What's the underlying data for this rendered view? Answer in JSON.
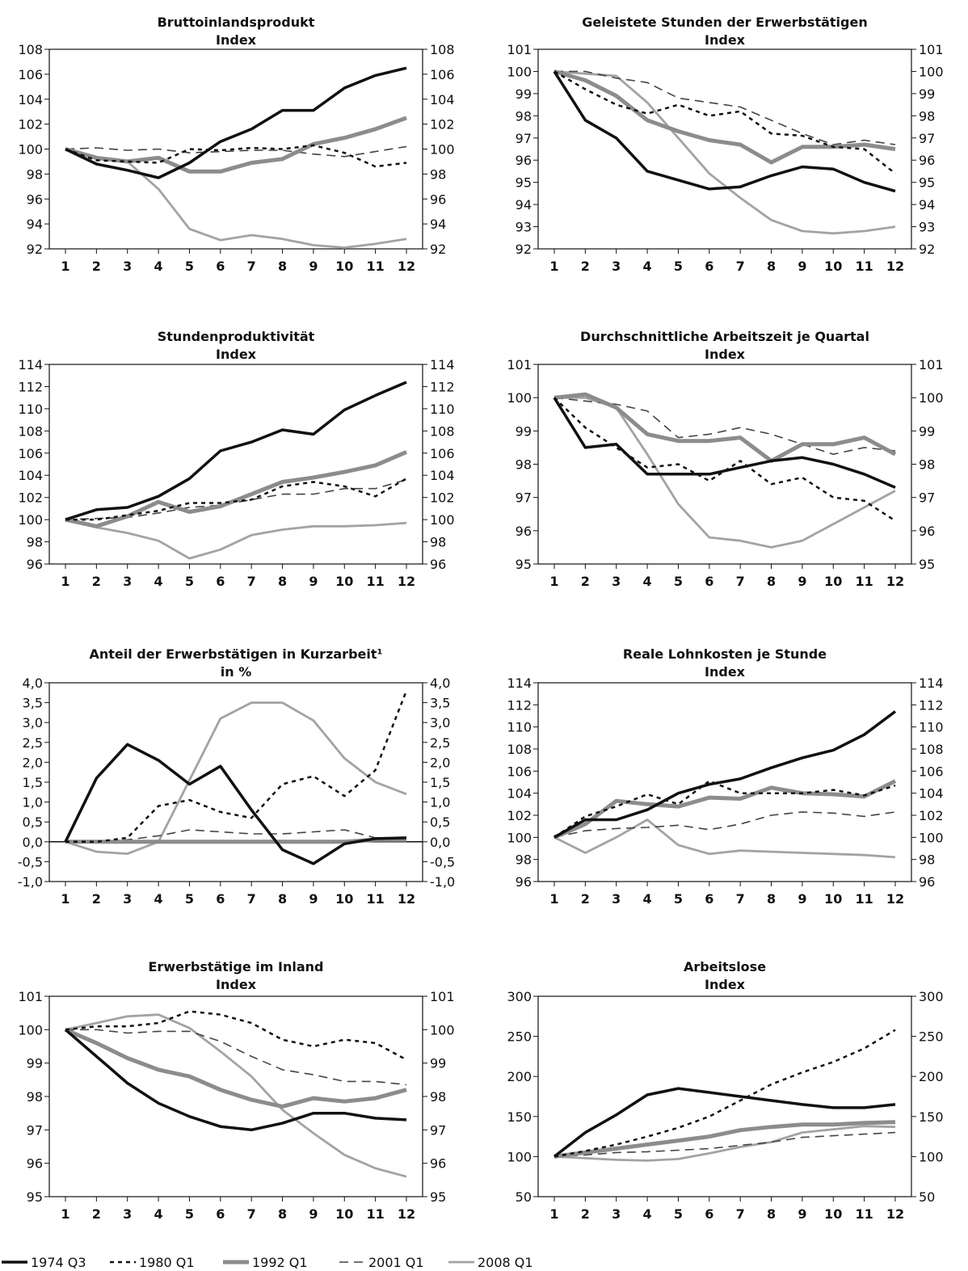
{
  "legend": {
    "items": [
      {
        "label": "1974 Q3",
        "color": "#111111",
        "width": 3.5,
        "dash": "",
        "key": "s1974"
      },
      {
        "label": "1980 Q1",
        "color": "#111111",
        "width": 2.5,
        "dash": "5,5",
        "key": "s1980"
      },
      {
        "label": "1992 Q1",
        "color": "#8c8c8c",
        "width": 5,
        "dash": "",
        "key": "s1992"
      },
      {
        "label": "2001 Q1",
        "color": "#444444",
        "width": 1.6,
        "dash": "11,7",
        "key": "s2001"
      },
      {
        "label": "2008 Q1",
        "color": "#a3a3a3",
        "width": 2.8,
        "dash": "",
        "key": "s2008"
      }
    ]
  },
  "chart_data": [
    {
      "type": "line",
      "title": "Bruttoinlandsprodukt",
      "subtitle": "Index",
      "x": [
        1,
        2,
        3,
        4,
        5,
        6,
        7,
        8,
        9,
        10,
        11,
        12
      ],
      "ylim": [
        92,
        108
      ],
      "yticks": [
        "92",
        "94",
        "96",
        "98",
        "100",
        "102",
        "104",
        "106",
        "108"
      ],
      "grid": false,
      "series": [
        {
          "name": "1974 Q3",
          "key": "s1974",
          "values": [
            100,
            98.8,
            98.3,
            97.7,
            98.9,
            100.6,
            101.6,
            103.1,
            103.1,
            104.9,
            105.9,
            106.5
          ]
        },
        {
          "name": "1980 Q1",
          "key": "s1980",
          "values": [
            100,
            99.1,
            99.0,
            98.9,
            100.0,
            99.9,
            100.1,
            100.0,
            100.3,
            99.7,
            98.6,
            98.9
          ]
        },
        {
          "name": "1992 Q1",
          "key": "s1992",
          "values": [
            100,
            99.3,
            99.0,
            99.3,
            98.2,
            98.2,
            98.9,
            99.2,
            100.4,
            100.9,
            101.6,
            102.5
          ]
        },
        {
          "name": "2001 Q1",
          "key": "s2001",
          "values": [
            100,
            100.1,
            99.9,
            100.0,
            99.7,
            99.8,
            99.9,
            99.9,
            99.6,
            99.4,
            99.8,
            100.2
          ]
        },
        {
          "name": "2008 Q1",
          "key": "s2008",
          "values": [
            100,
            99.2,
            99.0,
            96.8,
            93.6,
            92.7,
            93.1,
            92.8,
            92.3,
            92.1,
            92.4,
            92.8
          ]
        }
      ]
    },
    {
      "type": "line",
      "title": "Geleistete Stunden der Erwerbstätigen",
      "subtitle": "Index",
      "x": [
        1,
        2,
        3,
        4,
        5,
        6,
        7,
        8,
        9,
        10,
        11,
        12
      ],
      "ylim": [
        92,
        101
      ],
      "yticks": [
        "92",
        "93",
        "94",
        "95",
        "96",
        "97",
        "98",
        "99",
        "100",
        "101"
      ],
      "grid": false,
      "series": [
        {
          "name": "1974 Q3",
          "key": "s1974",
          "values": [
            100,
            97.8,
            97.0,
            95.5,
            95.1,
            94.7,
            94.8,
            95.3,
            95.7,
            95.6,
            95.0,
            94.6
          ]
        },
        {
          "name": "1980 Q1",
          "key": "s1980",
          "values": [
            100,
            99.2,
            98.5,
            98.1,
            98.5,
            98.0,
            98.2,
            97.2,
            97.1,
            96.6,
            96.5,
            95.4
          ]
        },
        {
          "name": "1992 Q1",
          "key": "s1992",
          "values": [
            100,
            99.6,
            98.9,
            97.8,
            97.3,
            96.9,
            96.7,
            95.9,
            96.6,
            96.6,
            96.7,
            96.5
          ]
        },
        {
          "name": "2001 Q1",
          "key": "s2001",
          "values": [
            100,
            100.0,
            99.7,
            99.5,
            98.8,
            98.6,
            98.4,
            97.8,
            97.2,
            96.7,
            96.9,
            96.7
          ]
        },
        {
          "name": "2008 Q1",
          "key": "s2008",
          "values": [
            100,
            99.9,
            99.8,
            98.6,
            97.0,
            95.4,
            94.3,
            93.3,
            92.8,
            92.7,
            92.8,
            93.0
          ]
        }
      ]
    },
    {
      "type": "line",
      "title": "Stundenproduktivität",
      "subtitle": "Index",
      "x": [
        1,
        2,
        3,
        4,
        5,
        6,
        7,
        8,
        9,
        10,
        11,
        12
      ],
      "ylim": [
        96,
        114
      ],
      "yticks": [
        "96",
        "98",
        "100",
        "102",
        "104",
        "106",
        "108",
        "110",
        "112",
        "114"
      ],
      "grid": false,
      "series": [
        {
          "name": "1974 Q3",
          "key": "s1974",
          "values": [
            100,
            100.9,
            101.1,
            102.1,
            103.7,
            106.2,
            107.0,
            108.1,
            107.7,
            109.9,
            111.2,
            112.4
          ]
        },
        {
          "name": "1980 Q1",
          "key": "s1980",
          "values": [
            100,
            100.0,
            100.4,
            100.8,
            101.5,
            101.5,
            101.8,
            103.0,
            103.4,
            103.0,
            102.1,
            103.7
          ]
        },
        {
          "name": "1992 Q1",
          "key": "s1992",
          "values": [
            100,
            99.4,
            100.3,
            101.6,
            100.7,
            101.2,
            102.3,
            103.4,
            103.8,
            104.3,
            104.9,
            106.1
          ]
        },
        {
          "name": "2001 Q1",
          "key": "s2001",
          "values": [
            100,
            100.1,
            100.2,
            100.6,
            101.1,
            101.3,
            101.8,
            102.3,
            102.3,
            102.8,
            102.8,
            103.6
          ]
        },
        {
          "name": "2008 Q1",
          "key": "s2008",
          "values": [
            100,
            99.3,
            98.8,
            98.1,
            96.5,
            97.3,
            98.6,
            99.1,
            99.4,
            99.4,
            99.5,
            99.7
          ]
        }
      ]
    },
    {
      "type": "line",
      "title": "Durchschnittliche Arbeitszeit je Quartal",
      "subtitle": "Index",
      "x": [
        1,
        2,
        3,
        4,
        5,
        6,
        7,
        8,
        9,
        10,
        11,
        12
      ],
      "ylim": [
        95,
        101
      ],
      "yticks": [
        "95",
        "96",
        "97",
        "98",
        "99",
        "100",
        "101"
      ],
      "grid": false,
      "series": [
        {
          "name": "1974 Q3",
          "key": "s1974",
          "values": [
            100,
            98.5,
            98.6,
            97.7,
            97.7,
            97.7,
            97.9,
            98.1,
            98.2,
            98.0,
            97.7,
            97.3
          ]
        },
        {
          "name": "1980 Q1",
          "key": "s1980",
          "values": [
            100,
            99.1,
            98.5,
            97.9,
            98.0,
            97.5,
            98.1,
            97.4,
            97.6,
            97.0,
            96.9,
            96.3
          ]
        },
        {
          "name": "1992 Q1",
          "key": "s1992",
          "values": [
            100,
            100.1,
            99.7,
            98.9,
            98.7,
            98.7,
            98.8,
            98.1,
            98.6,
            98.6,
            98.8,
            98.3
          ]
        },
        {
          "name": "2001 Q1",
          "key": "s2001",
          "values": [
            100,
            99.9,
            99.8,
            99.6,
            98.8,
            98.9,
            99.1,
            98.9,
            98.6,
            98.3,
            98.5,
            98.4
          ]
        },
        {
          "name": "2008 Q1",
          "key": "s2008",
          "values": [
            100,
            100.0,
            99.7,
            98.3,
            96.8,
            95.8,
            95.7,
            95.5,
            95.7,
            96.2,
            96.7,
            97.2
          ]
        }
      ]
    },
    {
      "type": "line",
      "title": "Anteil der Erwerbstätigen in Kurzarbeit¹",
      "subtitle": "in %",
      "x": [
        1,
        2,
        3,
        4,
        5,
        6,
        7,
        8,
        9,
        10,
        11,
        12
      ],
      "ylim": [
        -1.0,
        4.0
      ],
      "yticks": [
        "-1,0",
        "-0,5",
        "0,0",
        "0,5",
        "1,0",
        "1,5",
        "2,0",
        "2,5",
        "3,0",
        "3,5",
        "4,0"
      ],
      "grid": false,
      "zero_line": true,
      "series": [
        {
          "name": "1974 Q3",
          "key": "s1974",
          "values": [
            0.0,
            1.6,
            2.45,
            2.05,
            1.45,
            1.9,
            0.8,
            -0.2,
            -0.55,
            -0.05,
            0.08,
            0.1
          ]
        },
        {
          "name": "1980 Q1",
          "key": "s1980",
          "values": [
            0.0,
            0.0,
            0.1,
            0.9,
            1.05,
            0.75,
            0.6,
            1.45,
            1.65,
            1.15,
            1.8,
            3.8
          ]
        },
        {
          "name": "1992 Q1",
          "key": "s1992",
          "values": [
            0.0,
            0.0,
            0.0,
            0.0,
            0.0,
            0.0,
            0.0,
            0.0,
            0.0,
            0.0,
            0.05,
            0.05
          ]
        },
        {
          "name": "2001 Q1",
          "key": "s2001",
          "values": [
            0.0,
            0.0,
            0.05,
            0.15,
            0.3,
            0.25,
            0.2,
            0.2,
            0.25,
            0.3,
            0.1,
            0.1
          ]
        },
        {
          "name": "2008 Q1",
          "key": "s2008",
          "values": [
            0.0,
            -0.25,
            -0.3,
            0.0,
            1.55,
            3.1,
            3.5,
            3.5,
            3.05,
            2.1,
            1.5,
            1.2
          ]
        }
      ]
    },
    {
      "type": "line",
      "title": "Reale Lohnkosten je Stunde",
      "subtitle": "Index",
      "x": [
        1,
        2,
        3,
        4,
        5,
        6,
        7,
        8,
        9,
        10,
        11,
        12
      ],
      "ylim": [
        96,
        114
      ],
      "yticks": [
        "96",
        "98",
        "100",
        "102",
        "104",
        "106",
        "108",
        "110",
        "112",
        "114"
      ],
      "grid": false,
      "series": [
        {
          "name": "1974 Q3",
          "key": "s1974",
          "values": [
            100,
            101.6,
            101.6,
            102.5,
            104.0,
            104.8,
            105.3,
            106.3,
            107.2,
            107.9,
            109.3,
            111.4
          ]
        },
        {
          "name": "1980 Q1",
          "key": "s1980",
          "values": [
            100,
            101.9,
            102.8,
            103.9,
            103.0,
            105.1,
            104.0,
            104.0,
            104.0,
            104.3,
            103.8,
            104.7
          ]
        },
        {
          "name": "1992 Q1",
          "key": "s1992",
          "values": [
            100,
            101.2,
            103.3,
            103.0,
            102.8,
            103.6,
            103.5,
            104.5,
            104.0,
            103.9,
            103.7,
            105.1
          ]
        },
        {
          "name": "2001 Q1",
          "key": "s2001",
          "values": [
            100,
            100.6,
            100.8,
            100.9,
            101.1,
            100.7,
            101.2,
            102.0,
            102.3,
            102.2,
            101.9,
            102.3
          ]
        },
        {
          "name": "2008 Q1",
          "key": "s2008",
          "values": [
            100,
            98.6,
            100.0,
            101.6,
            99.3,
            98.5,
            98.8,
            98.7,
            98.6,
            98.5,
            98.4,
            98.2
          ]
        }
      ]
    },
    {
      "type": "line",
      "title": "Erwerbstätige im Inland",
      "subtitle": "Index",
      "x": [
        1,
        2,
        3,
        4,
        5,
        6,
        7,
        8,
        9,
        10,
        11,
        12
      ],
      "ylim": [
        95,
        101
      ],
      "yticks": [
        "95",
        "96",
        "97",
        "98",
        "99",
        "100",
        "101"
      ],
      "grid": false,
      "series": [
        {
          "name": "1974 Q3",
          "key": "s1974",
          "values": [
            100,
            99.2,
            98.4,
            97.8,
            97.4,
            97.1,
            97.0,
            97.2,
            97.5,
            97.5,
            97.35,
            97.3
          ]
        },
        {
          "name": "1980 Q1",
          "key": "s1980",
          "values": [
            100,
            100.1,
            100.1,
            100.2,
            100.55,
            100.45,
            100.2,
            99.7,
            99.5,
            99.7,
            99.6,
            99.1
          ]
        },
        {
          "name": "1992 Q1",
          "key": "s1992",
          "values": [
            100,
            99.6,
            99.15,
            98.8,
            98.6,
            98.2,
            97.9,
            97.7,
            97.95,
            97.85,
            97.95,
            98.2
          ]
        },
        {
          "name": "2001 Q1",
          "key": "s2001",
          "values": [
            100,
            100.0,
            99.9,
            99.95,
            99.95,
            99.65,
            99.2,
            98.8,
            98.65,
            98.45,
            98.45,
            98.35
          ]
        },
        {
          "name": "2008 Q1",
          "key": "s2008",
          "values": [
            100,
            100.2,
            100.4,
            100.45,
            100.05,
            99.35,
            98.6,
            97.6,
            96.9,
            96.25,
            95.85,
            95.6
          ]
        }
      ]
    },
    {
      "type": "line",
      "title": "Arbeitslose",
      "subtitle": "Index",
      "x": [
        1,
        2,
        3,
        4,
        5,
        6,
        7,
        8,
        9,
        10,
        11,
        12
      ],
      "ylim": [
        50,
        300
      ],
      "yticks": [
        "50",
        "100",
        "150",
        "200",
        "250",
        "300"
      ],
      "grid": false,
      "series": [
        {
          "name": "1974 Q3",
          "key": "s1974",
          "values": [
            100,
            130,
            152,
            177,
            185,
            180,
            175,
            170,
            165,
            161,
            161,
            165
          ]
        },
        {
          "name": "1980 Q1",
          "key": "s1980",
          "values": [
            100,
            107,
            115,
            125,
            136,
            150,
            170,
            190,
            205,
            218,
            235,
            258
          ]
        },
        {
          "name": "1992 Q1",
          "key": "s1992",
          "values": [
            100,
            105,
            110,
            115,
            120,
            125,
            133,
            137,
            140,
            140,
            142,
            143
          ]
        },
        {
          "name": "2001 Q1",
          "key": "s2001",
          "values": [
            100,
            102,
            105,
            106,
            108,
            110,
            114,
            118,
            124,
            126,
            128,
            130
          ]
        },
        {
          "name": "2008 Q1",
          "key": "s2008",
          "values": [
            100,
            98,
            96,
            95,
            97,
            104,
            112,
            118,
            130,
            134,
            138,
            137
          ]
        }
      ]
    }
  ]
}
